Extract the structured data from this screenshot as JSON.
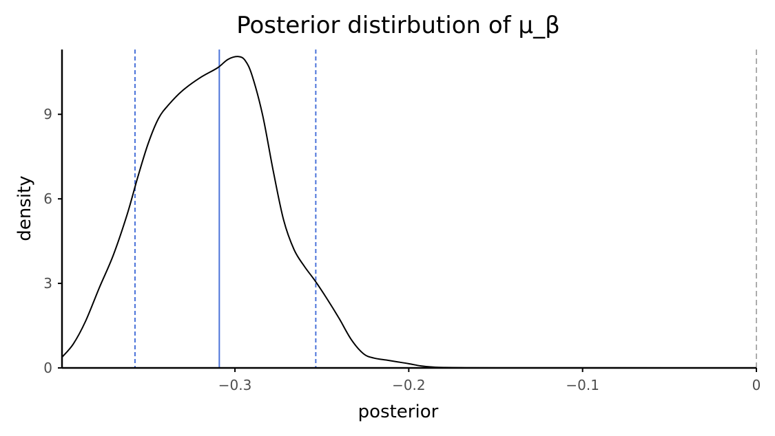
{
  "chart_data": {
    "type": "line",
    "title": "Posterior distirbution of μ_β",
    "xlabel": "posterior",
    "ylabel": "density",
    "xlim": [
      -0.3995,
      0.0
    ],
    "ylim": [
      0,
      11.3
    ],
    "x_ticks": [
      -0.3,
      -0.2,
      -0.1,
      0
    ],
    "x_tick_labels": [
      "−0.3",
      "−0.2",
      "−0.1",
      "0"
    ],
    "y_ticks": [
      0,
      3,
      6,
      9
    ],
    "y_tick_labels": [
      "0",
      "3",
      "6",
      "9"
    ],
    "grid": false,
    "legend": "none",
    "series": [
      {
        "style": "solid",
        "color": "#000000",
        "x": [
          -0.3995,
          -0.393,
          -0.386,
          -0.378,
          -0.37,
          -0.362,
          -0.356,
          -0.35,
          -0.344,
          -0.338,
          -0.33,
          -0.32,
          -0.31,
          -0.304,
          -0.298,
          -0.294,
          -0.29,
          -0.284,
          -0.278,
          -0.272,
          -0.266,
          -0.26,
          -0.254,
          -0.247,
          -0.24,
          -0.233,
          -0.226,
          -0.22,
          -0.213,
          -0.207,
          -0.2,
          -0.193,
          -0.186,
          -0.18,
          -0.17,
          -0.15,
          -0.1,
          -0.05,
          0.0
        ],
        "y": [
          0.38,
          0.85,
          1.65,
          2.85,
          4.0,
          5.45,
          6.75,
          7.95,
          8.85,
          9.35,
          9.85,
          10.3,
          10.65,
          10.95,
          11.05,
          10.9,
          10.35,
          8.95,
          7.0,
          5.25,
          4.2,
          3.6,
          3.1,
          2.45,
          1.75,
          1.0,
          0.5,
          0.35,
          0.28,
          0.22,
          0.15,
          0.07,
          0.03,
          0.015,
          0.008,
          0.004,
          0.002,
          0.001,
          0.0
        ]
      }
    ],
    "reference_lines": [
      {
        "x": -0.309,
        "style": "solid",
        "color": "#4a72d9"
      },
      {
        "x": -0.3575,
        "style": "dashed",
        "color": "#4a72d9"
      },
      {
        "x": -0.2535,
        "style": "dashed",
        "color": "#4a72d9"
      },
      {
        "x": 0.0,
        "style": "dashed",
        "color": "#7f7f7f"
      }
    ]
  }
}
